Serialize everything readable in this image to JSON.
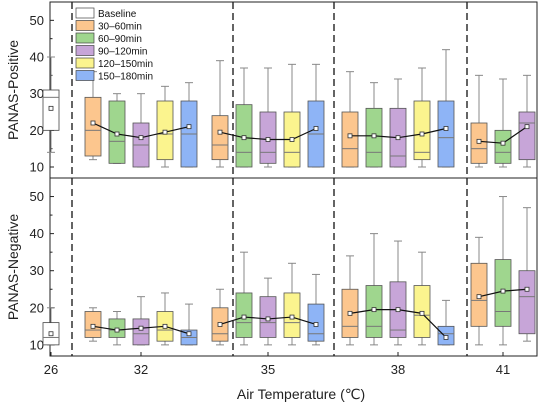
{
  "chart_data": {
    "type": "box",
    "xlabel": "Air Temperature (℃)",
    "xtick_labels": [
      "26",
      "32",
      "35",
      "38",
      "41"
    ],
    "y_ticks": [
      10,
      20,
      30,
      40,
      50
    ],
    "grid": false,
    "legend_position": "top-left",
    "legend": [
      {
        "name": "Baseline",
        "color": "#ffffff"
      },
      {
        "name": "30–60min",
        "color": "#fcc68e"
      },
      {
        "name": "60–90min",
        "color": "#9fd68e"
      },
      {
        "name": "90–120min",
        "color": "#c7a5d8"
      },
      {
        "name": "120–150min",
        "color": "#fbf48e"
      },
      {
        "name": "150–180min",
        "color": "#8eb4f6"
      }
    ],
    "panels": [
      {
        "ylabel": "PANAS-Positive",
        "ylim": [
          7,
          55
        ],
        "groups": [
          {
            "temp": "26",
            "boxes": [
              {
                "series": "Baseline",
                "q1": 20,
                "median": 29,
                "q3": 31,
                "wlow": 14,
                "whigh": 40,
                "mean": 26
              }
            ],
            "mean_line": false
          },
          {
            "temp": "32",
            "boxes": [
              {
                "series": "30–60min",
                "q1": 13,
                "median": 20,
                "q3": 29,
                "wlow": 12,
                "whigh": 36,
                "mean": 22
              },
              {
                "series": "60–90min",
                "q1": 11,
                "median": 17,
                "q3": 28,
                "wlow": 11,
                "whigh": 30,
                "mean": 19
              },
              {
                "series": "90–120min",
                "q1": 10,
                "median": 16,
                "q3": 22,
                "wlow": 10,
                "whigh": 30,
                "mean": 18
              },
              {
                "series": "120–150min",
                "q1": 12,
                "median": 19,
                "q3": 28,
                "wlow": 10,
                "whigh": 32,
                "mean": 19.5
              },
              {
                "series": "150–180min",
                "q1": 10,
                "median": 19,
                "q3": 28,
                "wlow": 10,
                "whigh": 33,
                "mean": 21
              }
            ],
            "mean_line": true
          },
          {
            "temp": "35",
            "boxes": [
              {
                "series": "30–60min",
                "q1": 12,
                "median": 16,
                "q3": 24,
                "wlow": 10,
                "whigh": 39,
                "mean": 19.5
              },
              {
                "series": "60–90min",
                "q1": 10,
                "median": 14,
                "q3": 27,
                "wlow": 10,
                "whigh": 37,
                "mean": 18
              },
              {
                "series": "90–120min",
                "q1": 11,
                "median": 14,
                "q3": 25,
                "wlow": 10,
                "whigh": 37,
                "mean": 17.5
              },
              {
                "series": "120–150min",
                "q1": 10,
                "median": 14,
                "q3": 25,
                "wlow": 10,
                "whigh": 38,
                "mean": 17.5
              },
              {
                "series": "150–180min",
                "q1": 10,
                "median": 19,
                "q3": 28,
                "wlow": 10,
                "whigh": 38,
                "mean": 20.5
              }
            ],
            "mean_line": true
          },
          {
            "temp": "38",
            "boxes": [
              {
                "series": "30–60min",
                "q1": 10,
                "median": 15,
                "q3": 25,
                "wlow": 10,
                "whigh": 36,
                "mean": 18.5
              },
              {
                "series": "60–90min",
                "q1": 10,
                "median": 14,
                "q3": 26,
                "wlow": 10,
                "whigh": 33,
                "mean": 18.5
              },
              {
                "series": "90–120min",
                "q1": 10,
                "median": 13,
                "q3": 26,
                "wlow": 10,
                "whigh": 34,
                "mean": 18
              },
              {
                "series": "120–150min",
                "q1": 12,
                "median": 14,
                "q3": 28,
                "wlow": 10,
                "whigh": 37,
                "mean": 19
              },
              {
                "series": "150–180min",
                "q1": 10,
                "median": 18,
                "q3": 28,
                "wlow": 10,
                "whigh": 42,
                "mean": 20.5
              }
            ],
            "mean_line": true
          },
          {
            "temp": "41",
            "boxes": [
              {
                "series": "30–60min",
                "q1": 11,
                "median": 15,
                "q3": 22,
                "wlow": 10,
                "whigh": 35,
                "mean": 17
              },
              {
                "series": "60–90min",
                "q1": 11,
                "median": 14,
                "q3": 20,
                "wlow": 10,
                "whigh": 34,
                "mean": 16.5
              },
              {
                "series": "90–120min",
                "q1": 12,
                "median": 22,
                "q3": 25,
                "wlow": 10,
                "whigh": 35,
                "mean": 21
              }
            ],
            "mean_line": true
          }
        ]
      },
      {
        "ylabel": "PANAS-Negative",
        "ylim": [
          7,
          55
        ],
        "groups": [
          {
            "temp": "26",
            "boxes": [
              {
                "series": "Baseline",
                "q1": 10,
                "median": 12,
                "q3": 16,
                "wlow": 10,
                "whigh": 20,
                "mean": 13
              }
            ],
            "mean_line": false
          },
          {
            "temp": "32",
            "boxes": [
              {
                "series": "30–60min",
                "q1": 12,
                "median": 14,
                "q3": 19,
                "wlow": 11,
                "whigh": 20,
                "mean": 15
              },
              {
                "series": "60–90min",
                "q1": 12,
                "median": 14,
                "q3": 17,
                "wlow": 10,
                "whigh": 19,
                "mean": 14
              },
              {
                "series": "90–120min",
                "q1": 10,
                "median": 13,
                "q3": 17,
                "wlow": 10,
                "whigh": 23,
                "mean": 14.5
              },
              {
                "series": "120–150min",
                "q1": 11,
                "median": 14,
                "q3": 19,
                "wlow": 10,
                "whigh": 24,
                "mean": 15
              },
              {
                "series": "150–180min",
                "q1": 10,
                "median": 12,
                "q3": 14,
                "wlow": 10,
                "whigh": 21,
                "mean": 13
              }
            ],
            "mean_line": true
          },
          {
            "temp": "35",
            "boxes": [
              {
                "series": "30–60min",
                "q1": 11,
                "median": 13,
                "q3": 20,
                "wlow": 10,
                "whigh": 25,
                "mean": 15.5
              },
              {
                "series": "60–90min",
                "q1": 12,
                "median": 16,
                "q3": 24,
                "wlow": 10,
                "whigh": 35,
                "mean": 17.5
              },
              {
                "series": "90–120min",
                "q1": 12,
                "median": 16,
                "q3": 23,
                "wlow": 10,
                "whigh": 28,
                "mean": 17
              },
              {
                "series": "120–150min",
                "q1": 12,
                "median": 16,
                "q3": 24,
                "wlow": 10,
                "whigh": 32,
                "mean": 17.5
              },
              {
                "series": "150–180min",
                "q1": 11,
                "median": 13,
                "q3": 21,
                "wlow": 10,
                "whigh": 29,
                "mean": 15.5
              }
            ],
            "mean_line": true
          },
          {
            "temp": "38",
            "boxes": [
              {
                "series": "30–60min",
                "q1": 12,
                "median": 15,
                "q3": 25,
                "wlow": 10,
                "whigh": 34,
                "mean": 18.5
              },
              {
                "series": "60–90min",
                "q1": 12,
                "median": 15,
                "q3": 26,
                "wlow": 10,
                "whigh": 40,
                "mean": 19.5
              },
              {
                "series": "90–120min",
                "q1": 12,
                "median": 14,
                "q3": 27,
                "wlow": 10,
                "whigh": 38,
                "mean": 19.5
              },
              {
                "series": "120–150min",
                "q1": 12,
                "median": 18,
                "q3": 26,
                "wlow": 10,
                "whigh": 35,
                "mean": 18.5
              },
              {
                "series": "150–180min",
                "q1": 10,
                "median": 13,
                "q3": 15,
                "wlow": 10,
                "whigh": 22,
                "mean": 12
              }
            ],
            "mean_line": true
          },
          {
            "temp": "41",
            "boxes": [
              {
                "series": "30–60min",
                "q1": 15,
                "median": 22,
                "q3": 32,
                "wlow": 10,
                "whigh": 39,
                "mean": 23
              },
              {
                "series": "60–90min",
                "q1": 15,
                "median": 19,
                "q3": 33,
                "wlow": 10,
                "whigh": 50,
                "mean": 24.5
              },
              {
                "series": "90–120min",
                "q1": 13,
                "median": 23,
                "q3": 30,
                "wlow": 11,
                "whigh": 47,
                "mean": 25
              }
            ],
            "mean_line": true
          }
        ]
      }
    ]
  }
}
